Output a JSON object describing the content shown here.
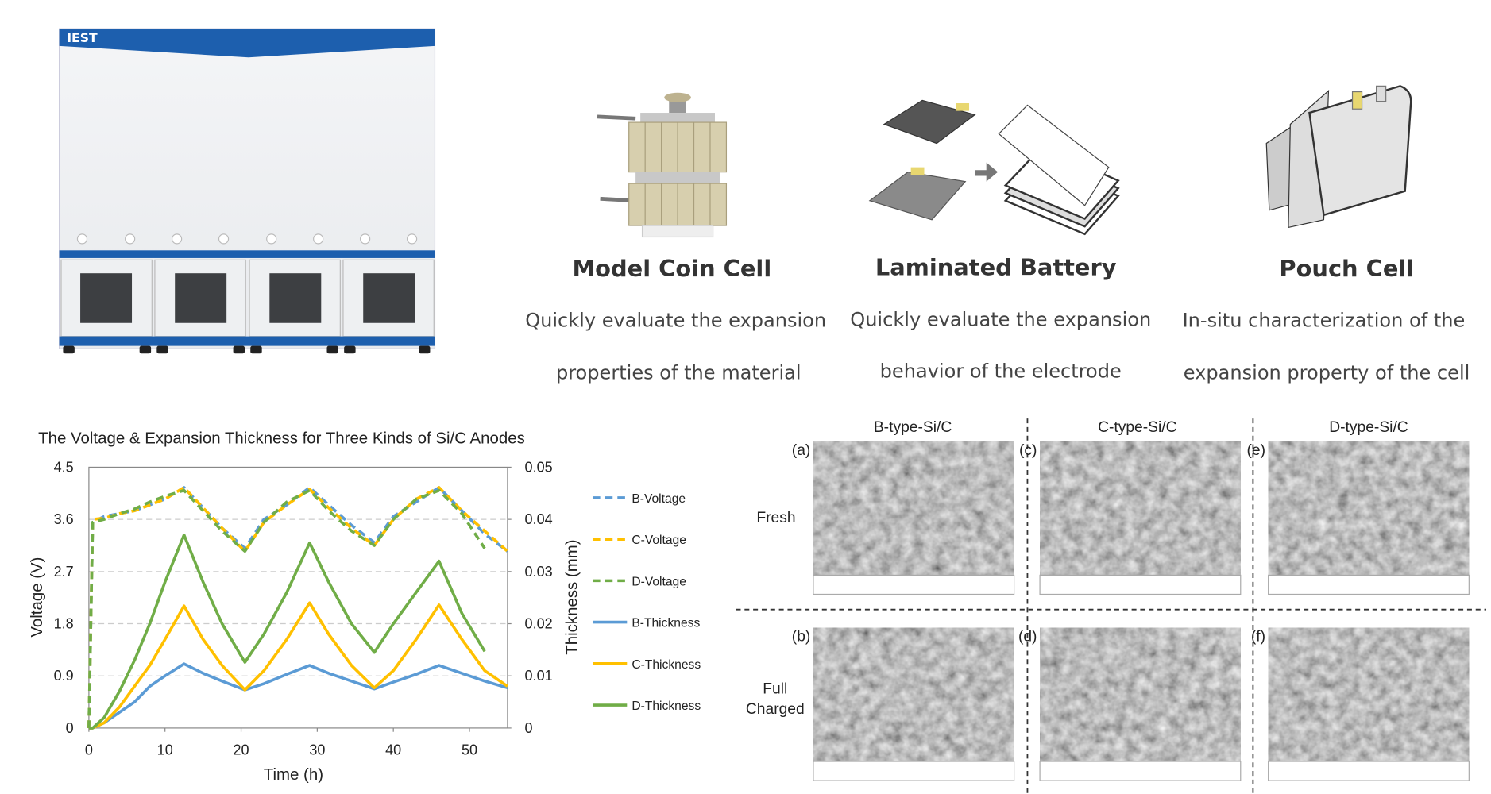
{
  "logo": "IEST",
  "cells": [
    {
      "title": "Model Coin Cell",
      "description": [
        "Quickly evaluate the expansion",
        "properties of the material"
      ]
    },
    {
      "title": "Laminated Battery",
      "description": [
        "Quickly evaluate the expansion",
        "behavior of the electrode"
      ]
    },
    {
      "title": "Pouch Cell",
      "description": [
        "In-situ characterization of the",
        "expansion property of the cell"
      ]
    }
  ],
  "chart_data": {
    "type": "line",
    "title": "The Voltage & Expansion Thickness for Three Kinds of Si/C Anodes",
    "x_label": "Time (h)",
    "y_label": "Voltage (V)",
    "y2_label": "Thickness (mm)",
    "x": [
      0,
      0.5,
      2,
      4,
      6,
      8,
      10,
      12.5,
      15,
      17.5,
      20.5,
      23,
      26,
      29,
      31.5,
      34.5,
      37.5,
      40,
      43,
      46,
      49,
      52,
      55
    ],
    "xlim": [
      0,
      55
    ],
    "xticks": [
      0,
      10,
      20,
      30,
      40,
      50
    ],
    "ylim": [
      0,
      4.5
    ],
    "yticks": [
      0,
      0.9,
      1.8,
      2.7,
      3.6,
      4.5
    ],
    "y2lim": [
      0,
      0.05
    ],
    "y2ticks": [
      0,
      0.01,
      0.02,
      0.03,
      0.04,
      0.05
    ],
    "grid": true,
    "legend": "right",
    "series": [
      {
        "name": "B-Voltage",
        "color": "#5b9bd5",
        "style": "dashed",
        "axis": "y",
        "values": [
          0,
          3.55,
          3.65,
          3.7,
          3.75,
          3.85,
          3.95,
          4.15,
          3.8,
          3.45,
          3.1,
          3.6,
          3.85,
          4.15,
          3.85,
          3.5,
          3.2,
          3.65,
          3.9,
          4.15,
          3.75,
          3.35,
          3.05
        ]
      },
      {
        "name": "C-Voltage",
        "color": "#ffc000",
        "style": "dashed",
        "axis": "y",
        "values": [
          0,
          3.6,
          3.62,
          3.7,
          3.75,
          3.85,
          3.95,
          4.15,
          3.8,
          3.45,
          3.05,
          3.55,
          3.85,
          4.12,
          3.8,
          3.45,
          3.15,
          3.6,
          3.95,
          4.15,
          3.75,
          3.4,
          3.05
        ]
      },
      {
        "name": "D-Voltage",
        "color": "#70ad47",
        "style": "dashed",
        "axis": "y",
        "values": [
          0,
          3.55,
          3.6,
          3.7,
          3.78,
          3.9,
          4.0,
          4.1,
          3.75,
          3.4,
          3.05,
          3.55,
          3.9,
          4.1,
          3.75,
          3.4,
          3.15,
          3.6,
          3.95,
          4.1,
          3.7,
          3.1,
          null
        ]
      },
      {
        "name": "B-Thickness",
        "color": "#5b9bd5",
        "style": "solid",
        "axis": "y2",
        "values": [
          0,
          0,
          0.001,
          0.003,
          0.005,
          0.008,
          0.01,
          0.0123,
          0.0105,
          0.009,
          0.0073,
          0.0085,
          0.0103,
          0.012,
          0.0105,
          0.009,
          0.0075,
          0.0088,
          0.0103,
          0.012,
          0.0105,
          0.009,
          0.0077
        ]
      },
      {
        "name": "C-Thickness",
        "color": "#ffc000",
        "style": "solid",
        "axis": "y2",
        "values": [
          0,
          0,
          0.001,
          0.004,
          0.008,
          0.012,
          0.017,
          0.0234,
          0.017,
          0.012,
          0.0073,
          0.011,
          0.017,
          0.024,
          0.018,
          0.012,
          0.0077,
          0.011,
          0.017,
          0.0236,
          0.017,
          0.011,
          0.008
        ]
      },
      {
        "name": "D-Thickness",
        "color": "#70ad47",
        "style": "solid",
        "axis": "y2",
        "values": [
          0,
          0,
          0.002,
          0.007,
          0.013,
          0.02,
          0.028,
          0.037,
          0.028,
          0.02,
          0.0126,
          0.018,
          0.026,
          0.0355,
          0.028,
          0.02,
          0.0145,
          0.02,
          0.026,
          0.032,
          0.022,
          0.0147,
          null
        ]
      }
    ]
  },
  "sem": {
    "columns": [
      "B-type-Si/C",
      "C-type-Si/C",
      "D-type-Si/C"
    ],
    "rows": [
      [
        "Fresh"
      ],
      [
        "Full",
        "Charged"
      ]
    ],
    "panels": [
      "(a)",
      "(c)",
      "(e)",
      "(b)",
      "(d)",
      "(f)"
    ]
  }
}
